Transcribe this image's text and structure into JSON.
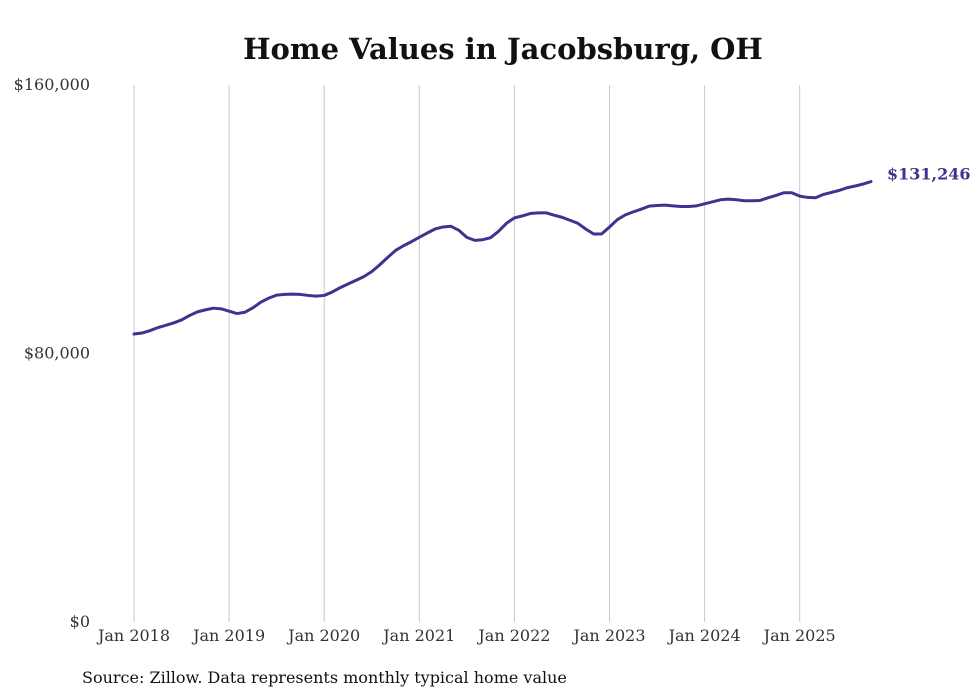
{
  "chart_data": {
    "type": "line",
    "title": "Home Values in Jacobsburg, OH",
    "xlabel": "",
    "ylabel": "",
    "ylim": [
      0,
      160000
    ],
    "yticks": [
      "$0",
      "$80,000",
      "$160,000"
    ],
    "xticks": [
      "Jan 2018",
      "Jan 2019",
      "Jan 2020",
      "Jan 2021",
      "Jan 2022",
      "Jan 2023",
      "Jan 2024",
      "Jan 2025"
    ],
    "grid": "vertical",
    "series": [
      {
        "color": "#3b3590",
        "x": [
          "2018-01",
          "2018-02",
          "2018-03",
          "2018-04",
          "2018-05",
          "2018-06",
          "2018-07",
          "2018-08",
          "2018-09",
          "2018-10",
          "2018-11",
          "2018-12",
          "2019-01",
          "2019-02",
          "2019-03",
          "2019-04",
          "2019-05",
          "2019-06",
          "2019-07",
          "2019-08",
          "2019-09",
          "2019-10",
          "2019-11",
          "2019-12",
          "2020-01",
          "2020-02",
          "2020-03",
          "2020-04",
          "2020-05",
          "2020-06",
          "2020-07",
          "2020-08",
          "2020-09",
          "2020-10",
          "2020-11",
          "2020-12",
          "2021-01",
          "2021-02",
          "2021-03",
          "2021-04",
          "2021-05",
          "2021-06",
          "2021-07",
          "2021-08",
          "2021-09",
          "2021-10",
          "2021-11",
          "2021-12",
          "2022-01",
          "2022-02",
          "2022-03",
          "2022-04",
          "2022-05",
          "2022-06",
          "2022-07",
          "2022-08",
          "2022-09",
          "2022-10",
          "2022-11",
          "2022-12",
          "2023-01",
          "2023-02",
          "2023-03",
          "2023-04",
          "2023-05",
          "2023-06",
          "2023-07",
          "2023-08",
          "2023-09",
          "2023-10",
          "2023-11",
          "2023-12",
          "2024-01",
          "2024-02",
          "2024-03",
          "2024-04",
          "2024-05",
          "2024-06",
          "2024-07",
          "2024-08",
          "2024-09",
          "2024-10",
          "2024-11",
          "2024-12",
          "2025-01",
          "2025-02",
          "2025-03",
          "2025-04",
          "2025-05",
          "2025-06",
          "2025-07",
          "2025-08",
          "2025-09",
          "2025-10"
        ],
        "values": [
          85800,
          86100,
          86800,
          87700,
          88400,
          89100,
          90000,
          91300,
          92400,
          93000,
          93500,
          93300,
          92600,
          91900,
          92300,
          93600,
          95300,
          96500,
          97400,
          97600,
          97700,
          97600,
          97300,
          97100,
          97300,
          98300,
          99600,
          100700,
          101800,
          102900,
          104400,
          106400,
          108600,
          110700,
          112100,
          113300,
          114600,
          115900,
          117100,
          117700,
          117900,
          116700,
          114600,
          113700,
          113900,
          114500,
          116400,
          118800,
          120400,
          121000,
          121700,
          121900,
          121900,
          121200,
          120600,
          119700,
          118800,
          117100,
          115600,
          115600,
          117700,
          119900,
          121300,
          122200,
          123000,
          123900,
          124100,
          124200,
          124000,
          123800,
          123800,
          124000,
          124600,
          125200,
          125800,
          126000,
          125800,
          125500,
          125500,
          125600,
          126400,
          127100,
          127900,
          127900,
          126900,
          126500,
          126400,
          127400,
          128000,
          128600,
          129400,
          129900,
          130500,
          131246
        ],
        "end_label": "$131,246"
      }
    ]
  },
  "footer": {
    "source": "Source: Zillow. Data represents monthly typical home value"
  }
}
